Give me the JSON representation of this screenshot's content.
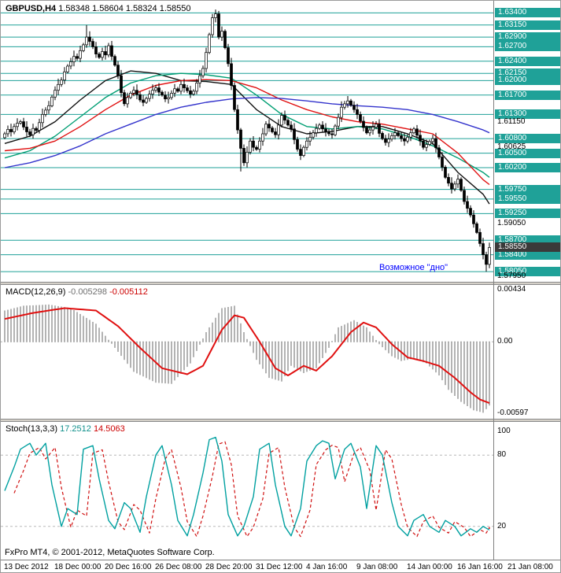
{
  "header": {
    "symbol": "GBPUSD,H4",
    "quotes": "1.58348 1.58604 1.58324 1.58550"
  },
  "footer": {
    "copyright": "FxPro MT4, © 2001-2012, MetaQuotes Software Corp."
  },
  "colors": {
    "level": "#1fa198",
    "level_box_bg": "#1fa198",
    "current_price_box_bg": "#3a3a3a",
    "bull_candle": "#ffffff",
    "bear_candle": "#000000",
    "candle_outline": "#000000",
    "macd_hist": "#a0a0a0",
    "macd_signal": "#e01010",
    "stoch_k": "#00a0a0",
    "stoch_d": "#d01010",
    "annotation": "#0000ff"
  },
  "chart_data": {
    "type": "candlestick_with_indicators",
    "title": "GBPUSD H4 with MACD and Stochastic",
    "symbol": "GBPUSD",
    "timeframe": "H4",
    "ohlc_header": {
      "open": "1.58348",
      "high": "1.58604",
      "low": "1.58324",
      "close": "1.58550"
    },
    "price_panel": {
      "ylim": [
        1.5784,
        1.6365
      ],
      "first_open": 1.6082,
      "closes": [
        1.609,
        1.6099,
        1.6094,
        1.6105,
        1.6112,
        1.6115,
        1.6104,
        1.6094,
        1.6088,
        1.6101,
        1.6097,
        1.6113,
        1.613,
        1.6139,
        1.6148,
        1.6166,
        1.618,
        1.6192,
        1.6201,
        1.6218,
        1.623,
        1.6239,
        1.625,
        1.6246,
        1.6262,
        1.6274,
        1.629,
        1.6281,
        1.627,
        1.6255,
        1.6248,
        1.626,
        1.6253,
        1.6272,
        1.625,
        1.6232,
        1.621,
        1.6175,
        1.6152,
        1.6165,
        1.6174,
        1.618,
        1.6171,
        1.616,
        1.6155,
        1.6163,
        1.6172,
        1.618,
        1.6185,
        1.6176,
        1.617,
        1.6162,
        1.6165,
        1.6174,
        1.6183,
        1.6178,
        1.6192,
        1.6185,
        1.6179,
        1.6172,
        1.6178,
        1.6195,
        1.621,
        1.6225,
        1.6258,
        1.6295,
        1.633,
        1.6338,
        1.629,
        1.6302,
        1.6268,
        1.6235,
        1.619,
        1.614,
        1.6098,
        1.606,
        1.603,
        1.6052,
        1.6075,
        1.6062,
        1.6058,
        1.6075,
        1.609,
        1.611,
        1.6102,
        1.6094,
        1.6088,
        1.6108,
        1.6128,
        1.6118,
        1.6108,
        1.61,
        1.6078,
        1.6058,
        1.6045,
        1.6062,
        1.6075,
        1.6083,
        1.6092,
        1.6101,
        1.6108,
        1.61,
        1.6094,
        1.609,
        1.6088,
        1.6106,
        1.6124,
        1.6145,
        1.6152,
        1.6158,
        1.6149,
        1.614,
        1.613,
        1.6116,
        1.6103,
        1.6092,
        1.6098,
        1.6104,
        1.611,
        1.6091,
        1.608,
        1.6072,
        1.6079,
        1.6086,
        1.6092,
        1.6086,
        1.608,
        1.6075,
        1.6083,
        1.6092,
        1.61,
        1.6087,
        1.6075,
        1.6062,
        1.6068,
        1.6074,
        1.608,
        1.6061,
        1.6042,
        1.6021,
        1.6,
        1.5988,
        1.5976,
        1.5986,
        1.5996,
        1.5973,
        1.595,
        1.5936,
        1.5922,
        1.5904,
        1.5886,
        1.5863,
        1.584,
        1.582,
        1.5855
      ],
      "high_overrides": {
        "26": 1.6315,
        "67": 1.6347
      },
      "low_overrides": {
        "75": 1.6012,
        "94": 1.6036,
        "153": 1.5805
      },
      "levels": [
        {
          "price": 1.634,
          "label": "1.63400"
        },
        {
          "price": 1.6315,
          "label": "1.63150"
        },
        {
          "price": 1.629,
          "label": "1.62900"
        },
        {
          "price": 1.627,
          "label": "1.62700"
        },
        {
          "price": 1.624,
          "label": "1.62400"
        },
        {
          "price": 1.6215,
          "label": "1.62150"
        },
        {
          "price": 1.62,
          "label": "1.62000"
        },
        {
          "price": 1.617,
          "label": "1.61700"
        },
        {
          "price": 1.613,
          "label": "1.61300"
        },
        {
          "price": 1.608,
          "label": "1.60800"
        },
        {
          "price": 1.605,
          "label": "1.60500"
        },
        {
          "price": 1.602,
          "label": "1.60200"
        },
        {
          "price": 1.5975,
          "label": "1.59750"
        },
        {
          "price": 1.5955,
          "label": "1.59550"
        },
        {
          "price": 1.5925,
          "label": "1.59250"
        },
        {
          "price": 1.587,
          "label": "1.58700"
        },
        {
          "price": 1.584,
          "label": "1.58400"
        },
        {
          "price": 1.5805,
          "label": "1.58050"
        }
      ],
      "scale_marks": [
        {
          "price": 1.6115,
          "label": "1.61150"
        },
        {
          "price": 1.60625,
          "label": "1.60625"
        },
        {
          "price": 1.5905,
          "label": "1.59050"
        },
        {
          "price": 1.5795,
          "label": "1.57950"
        }
      ],
      "current": {
        "price": 1.5855,
        "label": "1.58550"
      },
      "moving_averages": [
        {
          "name": "ma-fast-black",
          "color": "#111111",
          "step": 8,
          "values": [
            1.607,
            1.6085,
            1.6115,
            1.616,
            1.62,
            1.622,
            1.6215,
            1.62,
            1.6198,
            1.6192,
            1.614,
            1.6105,
            1.609,
            1.6095,
            1.6105,
            1.6105,
            1.609,
            1.607,
            1.601,
            1.5965,
            1.5945
          ]
        },
        {
          "name": "ma-medium-green",
          "color": "#009e73",
          "step": 8,
          "values": [
            1.604,
            1.6055,
            1.6085,
            1.6125,
            1.6165,
            1.6195,
            1.621,
            1.6215,
            1.6212,
            1.6205,
            1.617,
            1.613,
            1.6105,
            1.61,
            1.6105,
            1.61,
            1.6085,
            1.6065,
            1.604,
            1.601,
            1.6
          ]
        },
        {
          "name": "ma-medium-red",
          "color": "#e01010",
          "step": 8,
          "values": [
            1.6055,
            1.606,
            1.6075,
            1.6105,
            1.614,
            1.617,
            1.619,
            1.62,
            1.6202,
            1.62,
            1.6185,
            1.616,
            1.614,
            1.6125,
            1.6115,
            1.611,
            1.61,
            1.609,
            1.605,
            1.5995,
            1.5985
          ]
        },
        {
          "name": "ma-slow-blue",
          "color": "#3333cc",
          "step": 8,
          "values": [
            1.602,
            1.603,
            1.6045,
            1.6065,
            1.609,
            1.611,
            1.613,
            1.6145,
            1.6155,
            1.6162,
            1.6165,
            1.6163,
            1.6158,
            1.6152,
            1.6148,
            1.6145,
            1.614,
            1.613,
            1.6115,
            1.6098,
            1.6092
          ]
        }
      ],
      "annotation": {
        "text": "Возможное \"дно\"",
        "color": "#0000ff",
        "x_bar": 119,
        "price": 1.5812
      }
    },
    "macd_panel": {
      "name": "MACD(12,26,9)",
      "values": [
        "-0.005298",
        "-0.005112"
      ],
      "ylim": [
        -0.0064,
        0.00473
      ],
      "scale": [
        {
          "v": 0.00434,
          "label": "0.00434"
        },
        {
          "v": 0,
          "label": "0.00"
        },
        {
          "v": -0.00597,
          "label": "-0.00597"
        }
      ],
      "histogram_pts": [
        [
          0,
          0.0026
        ],
        [
          6,
          0.003
        ],
        [
          14,
          0.0031
        ],
        [
          21,
          0.0028
        ],
        [
          29,
          0.0015
        ],
        [
          35,
          -0.0005
        ],
        [
          41,
          -0.0025
        ],
        [
          48,
          -0.0034
        ],
        [
          53,
          -0.0035
        ],
        [
          59,
          -0.0018
        ],
        [
          64,
          0.0008
        ],
        [
          69,
          0.0028
        ],
        [
          73,
          0.003
        ],
        [
          76,
          0.0008
        ],
        [
          80,
          -0.0015
        ],
        [
          84,
          -0.003
        ],
        [
          88,
          -0.0033
        ],
        [
          91,
          -0.002
        ],
        [
          95,
          -0.0026
        ],
        [
          99,
          -0.0022
        ],
        [
          103,
          -0.0005
        ],
        [
          106,
          0.0012
        ],
        [
          111,
          0.0018
        ],
        [
          115,
          0.0012
        ],
        [
          119,
          -0.0002
        ],
        [
          123,
          -0.0012
        ],
        [
          126,
          -0.0016
        ],
        [
          130,
          -0.0014
        ],
        [
          134,
          -0.0018
        ],
        [
          138,
          -0.0028
        ],
        [
          141,
          -0.004
        ],
        [
          145,
          -0.005
        ],
        [
          149,
          -0.0057
        ],
        [
          152,
          -0.0059
        ],
        [
          154,
          -0.0053
        ]
      ],
      "signal_pts": [
        [
          0,
          0.0019
        ],
        [
          9,
          0.0024
        ],
        [
          19,
          0.0028
        ],
        [
          29,
          0.0026
        ],
        [
          36,
          0.0013
        ],
        [
          43,
          -0.0005
        ],
        [
          50,
          -0.0022
        ],
        [
          58,
          -0.0027
        ],
        [
          63,
          -0.002
        ],
        [
          69,
          0.001
        ],
        [
          73,
          0.0022
        ],
        [
          76,
          0.002
        ],
        [
          81,
          0
        ],
        [
          86,
          -0.0022
        ],
        [
          90,
          -0.0028
        ],
        [
          95,
          -0.002
        ],
        [
          99,
          -0.0024
        ],
        [
          104,
          -0.0012
        ],
        [
          110,
          0.0008
        ],
        [
          114,
          0.0016
        ],
        [
          118,
          0.0012
        ],
        [
          123,
          -0.0002
        ],
        [
          128,
          -0.0013
        ],
        [
          133,
          -0.0016
        ],
        [
          138,
          -0.002
        ],
        [
          143,
          -0.003
        ],
        [
          148,
          -0.0042
        ],
        [
          151,
          -0.0048
        ],
        [
          154,
          -0.0051
        ]
      ]
    },
    "stoch_panel": {
      "name": "Stoch(13,3,3)",
      "values": [
        "17.2512",
        "14.5063"
      ],
      "ylim": [
        -8,
        108
      ],
      "levels": [
        {
          "v": 100,
          "label": "100",
          "line": false
        },
        {
          "v": 80,
          "label": "80",
          "line": true
        },
        {
          "v": 20,
          "label": "20",
          "line": true
        }
      ],
      "k_pts": [
        [
          0,
          50
        ],
        [
          3,
          70
        ],
        [
          5,
          85
        ],
        [
          8,
          90
        ],
        [
          10,
          80
        ],
        [
          13,
          90
        ],
        [
          15,
          55
        ],
        [
          18,
          20
        ],
        [
          20,
          35
        ],
        [
          23,
          30
        ],
        [
          25,
          85
        ],
        [
          28,
          88
        ],
        [
          30,
          60
        ],
        [
          33,
          25
        ],
        [
          35,
          18
        ],
        [
          38,
          40
        ],
        [
          40,
          35
        ],
        [
          43,
          15
        ],
        [
          45,
          45
        ],
        [
          48,
          80
        ],
        [
          50,
          88
        ],
        [
          53,
          55
        ],
        [
          55,
          25
        ],
        [
          58,
          12
        ],
        [
          60,
          30
        ],
        [
          63,
          65
        ],
        [
          65,
          93
        ],
        [
          67,
          95
        ],
        [
          69,
          75
        ],
        [
          71,
          30
        ],
        [
          74,
          12
        ],
        [
          76,
          20
        ],
        [
          79,
          45
        ],
        [
          81,
          85
        ],
        [
          84,
          90
        ],
        [
          86,
          55
        ],
        [
          89,
          20
        ],
        [
          91,
          12
        ],
        [
          94,
          35
        ],
        [
          96,
          75
        ],
        [
          99,
          88
        ],
        [
          101,
          92
        ],
        [
          103,
          90
        ],
        [
          105,
          60
        ],
        [
          108,
          85
        ],
        [
          110,
          90
        ],
        [
          113,
          70
        ],
        [
          115,
          35
        ],
        [
          118,
          88
        ],
        [
          120,
          80
        ],
        [
          123,
          40
        ],
        [
          125,
          20
        ],
        [
          128,
          12
        ],
        [
          130,
          25
        ],
        [
          133,
          30
        ],
        [
          135,
          20
        ],
        [
          138,
          15
        ],
        [
          140,
          25
        ],
        [
          143,
          20
        ],
        [
          145,
          12
        ],
        [
          148,
          18
        ],
        [
          150,
          15
        ],
        [
          152,
          20
        ],
        [
          154,
          17
        ]
      ],
      "d_lag_bars": 3
    },
    "time_axis": {
      "x0": 4,
      "x_step": 64,
      "labels": [
        "13 Dec 2012",
        "18 Dec 00:00",
        "20 Dec 16:00",
        "26 Dec 08:00",
        "28 Dec 20:00",
        "31 Dec 12:00",
        "4 Jan 16:00",
        "9 Jan 08:00",
        "14 Jan 00:00",
        "16 Jan 16:00",
        "21 Jan 08:00"
      ]
    }
  }
}
